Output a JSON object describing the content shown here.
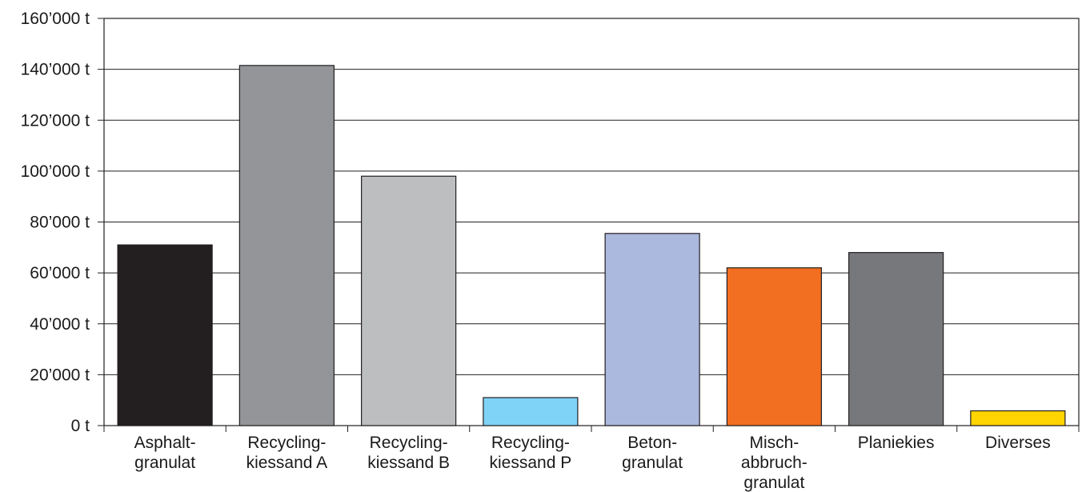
{
  "chart_data": {
    "type": "bar",
    "categories": [
      [
        "Asphalt-",
        "granulat"
      ],
      [
        "Recycling-",
        "kiessand A"
      ],
      [
        "Recycling-",
        "kiessand B"
      ],
      [
        "Recycling-",
        "kiessand P"
      ],
      [
        "Beton-",
        "granulat"
      ],
      [
        "Misch-",
        "abbruch-",
        "granulat"
      ],
      [
        "Planiekies"
      ],
      [
        "Diverses"
      ]
    ],
    "values": [
      71000,
      141500,
      98000,
      11000,
      75500,
      62000,
      68000,
      5800
    ],
    "colors": [
      "#231f20",
      "#939598",
      "#bcbec0",
      "#7fd3f7",
      "#abb9de",
      "#f26f21",
      "#77787b",
      "#ffd400"
    ],
    "y_ticks": [
      "0 t",
      "20’000 t",
      "40’000 t",
      "60’000 t",
      "80’000 t",
      "100’000 t",
      "120’000 t",
      "140’000 t",
      "160’000 t"
    ],
    "ylim": [
      0,
      160000
    ],
    "y_tick_step": 20000,
    "grid": true,
    "title": "",
    "xlabel": "",
    "ylabel": ""
  }
}
